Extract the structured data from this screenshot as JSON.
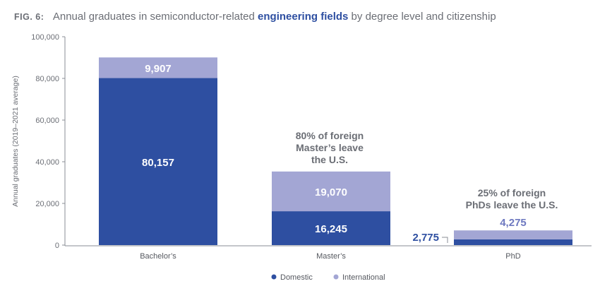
{
  "figure": {
    "label": "FIG. 6:",
    "title_pre": "Annual graduates in semiconductor-related ",
    "title_em": "engineering fields",
    "title_post": " by degree level and citizenship"
  },
  "colors": {
    "domestic": "#2e4fa1",
    "international": "#a3a6d4",
    "axis": "#8a8d94",
    "text": "#6b6e75"
  },
  "chart_data": {
    "type": "bar",
    "stacked": true,
    "categories": [
      "Bachelor’s",
      "Master’s",
      "PhD"
    ],
    "series": [
      {
        "name": "Domestic",
        "values": [
          80157,
          16245,
          2775
        ],
        "labels": [
          "80,157",
          "16,245",
          "2,775"
        ]
      },
      {
        "name": "International",
        "values": [
          9907,
          19070,
          4275
        ],
        "labels": [
          "9,907",
          "19,070",
          "4,275"
        ]
      }
    ],
    "xlabel": "",
    "ylabel": "Annual graduates (2019–2021 average)",
    "ylim": [
      0,
      100000
    ],
    "yticks": [
      0,
      20000,
      40000,
      60000,
      80000,
      100000
    ],
    "ytick_labels": [
      "0",
      "20,000",
      "40,000",
      "60,000",
      "80,000",
      "100,000"
    ],
    "grid": false,
    "legend_position": "bottom-center",
    "annotations": [
      {
        "category": "Master’s",
        "lines": [
          "80% of foreign",
          "Master’s leave",
          "the U.S."
        ]
      },
      {
        "category": "PhD",
        "lines": [
          "25% of foreign",
          "PhDs leave the U.S."
        ]
      }
    ]
  }
}
